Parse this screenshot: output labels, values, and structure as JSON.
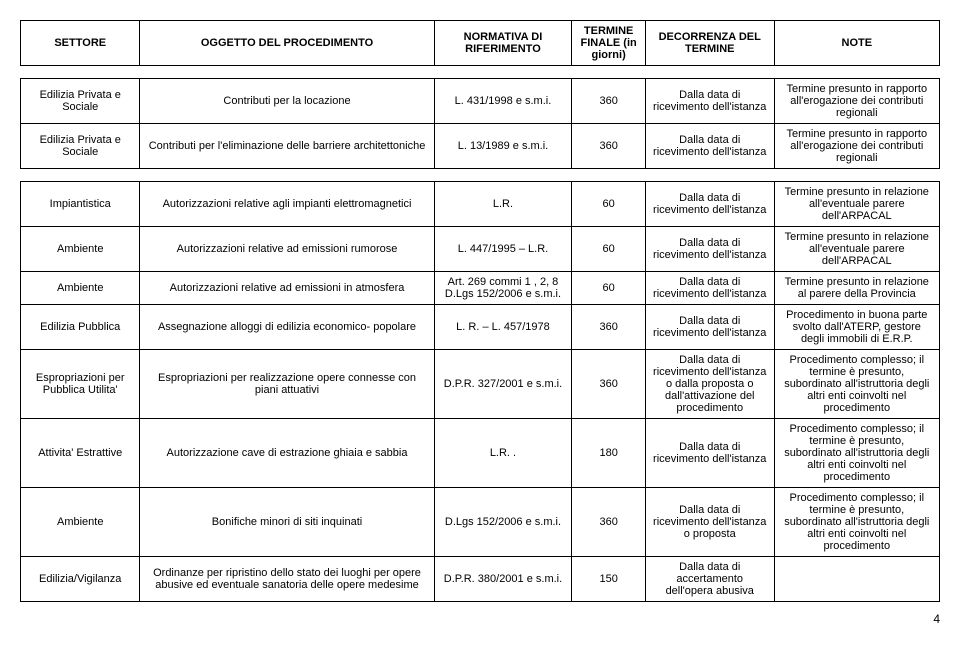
{
  "header": {
    "settore": "SETTORE",
    "oggetto": "OGGETTO DEL PROCEDIMENTO",
    "normativa": "NORMATIVA DI RIFERIMENTO",
    "termine": "TERMINE FINALE (in giorni)",
    "decorrenza": "DECORRENZA DEL TERMINE",
    "note": "NOTE"
  },
  "section1": [
    {
      "settore": "Edilizia Privata e Sociale",
      "oggetto": "Contributi per la locazione",
      "normativa": "L. 431/1998 e s.m.i.",
      "termine": "360",
      "decorrenza": "Dalla data di ricevimento dell'istanza",
      "note": "Termine presunto in rapporto all'erogazione dei contributi regionali"
    },
    {
      "settore": "Edilizia Privata e Sociale",
      "oggetto": "Contributi per l'eliminazione delle barriere architettoniche",
      "normativa": "L. 13/1989 e s.m.i.",
      "termine": "360",
      "decorrenza": "Dalla data di ricevimento dell'istanza",
      "note": "Termine presunto in rapporto all'erogazione dei contributi regionali"
    }
  ],
  "section2": [
    {
      "settore": "Impiantistica",
      "oggetto": "Autorizzazioni relative agli impianti elettromagnetici",
      "normativa": "L.R.",
      "termine": "60",
      "decorrenza": "Dalla data di ricevimento dell'istanza",
      "note": "Termine presunto in relazione all'eventuale parere dell'ARPACAL"
    },
    {
      "settore": "Ambiente",
      "oggetto": "Autorizzazioni relative ad emissioni rumorose",
      "normativa": "L. 447/1995 – L.R.",
      "termine": "60",
      "decorrenza": "Dalla data di ricevimento dell'istanza",
      "note": "Termine presunto in relazione all'eventuale parere dell'ARPACAL"
    },
    {
      "settore": "Ambiente",
      "oggetto": "Autorizzazioni relative ad emissioni in atmosfera",
      "normativa": "Art. 269 commi 1 , 2, 8  D.Lgs 152/2006 e s.m.i.",
      "termine": "60",
      "decorrenza": "Dalla data di ricevimento dell'istanza",
      "note": "Termine presunto in relazione al parere della Provincia"
    },
    {
      "settore": "Edilizia Pubblica",
      "oggetto": "Assegnazione alloggi di edilizia economico- popolare",
      "normativa": "L. R.  – L. 457/1978",
      "termine": "360",
      "decorrenza": "Dalla data di ricevimento dell'istanza",
      "note": "Procedimento in buona parte svolto dall'ATERP, gestore degli immobili di E.R.P."
    },
    {
      "settore": "Espropriazioni per Pubblica Utilita'",
      "oggetto": "Espropriazioni per realizzazione opere connesse con piani attuativi",
      "normativa": "D.P.R. 327/2001 e s.m.i.",
      "termine": "360",
      "decorrenza": "Dalla data di ricevimento dell'istanza o dalla proposta o dall'attivazione del procedimento",
      "note": "Procedimento complesso; il termine è presunto, subordinato all'istruttoria degli altri enti coinvolti nel procedimento"
    },
    {
      "settore": "Attivita' Estrattive",
      "oggetto": "Autorizzazione cave di estrazione ghiaia e sabbia",
      "normativa": "L.R. .",
      "termine": "180",
      "decorrenza": "Dalla data di ricevimento dell'istanza",
      "note": "Procedimento complesso; il termine è presunto, subordinato all'istruttoria degli altri enti coinvolti nel procedimento"
    },
    {
      "settore": "Ambiente",
      "oggetto": "Bonifiche minori di siti inquinati",
      "normativa": "D.Lgs 152/2006 e s.m.i.",
      "termine": "360",
      "decorrenza": "Dalla data di ricevimento dell'istanza o proposta",
      "note": "Procedimento complesso; il termine è presunto, subordinato all'istruttoria degli altri enti coinvolti nel procedimento"
    },
    {
      "settore": "Edilizia/Vigilanza",
      "oggetto": "Ordinanze per ripristino dello stato dei luoghi per opere abusive ed eventuale sanatoria delle opere medesime",
      "normativa": "D.P.R. 380/2001 e s.m.i.",
      "termine": "150",
      "decorrenza": "Dalla data di accertamento dell'opera abusiva",
      "note": ""
    }
  ],
  "page_number": "4"
}
